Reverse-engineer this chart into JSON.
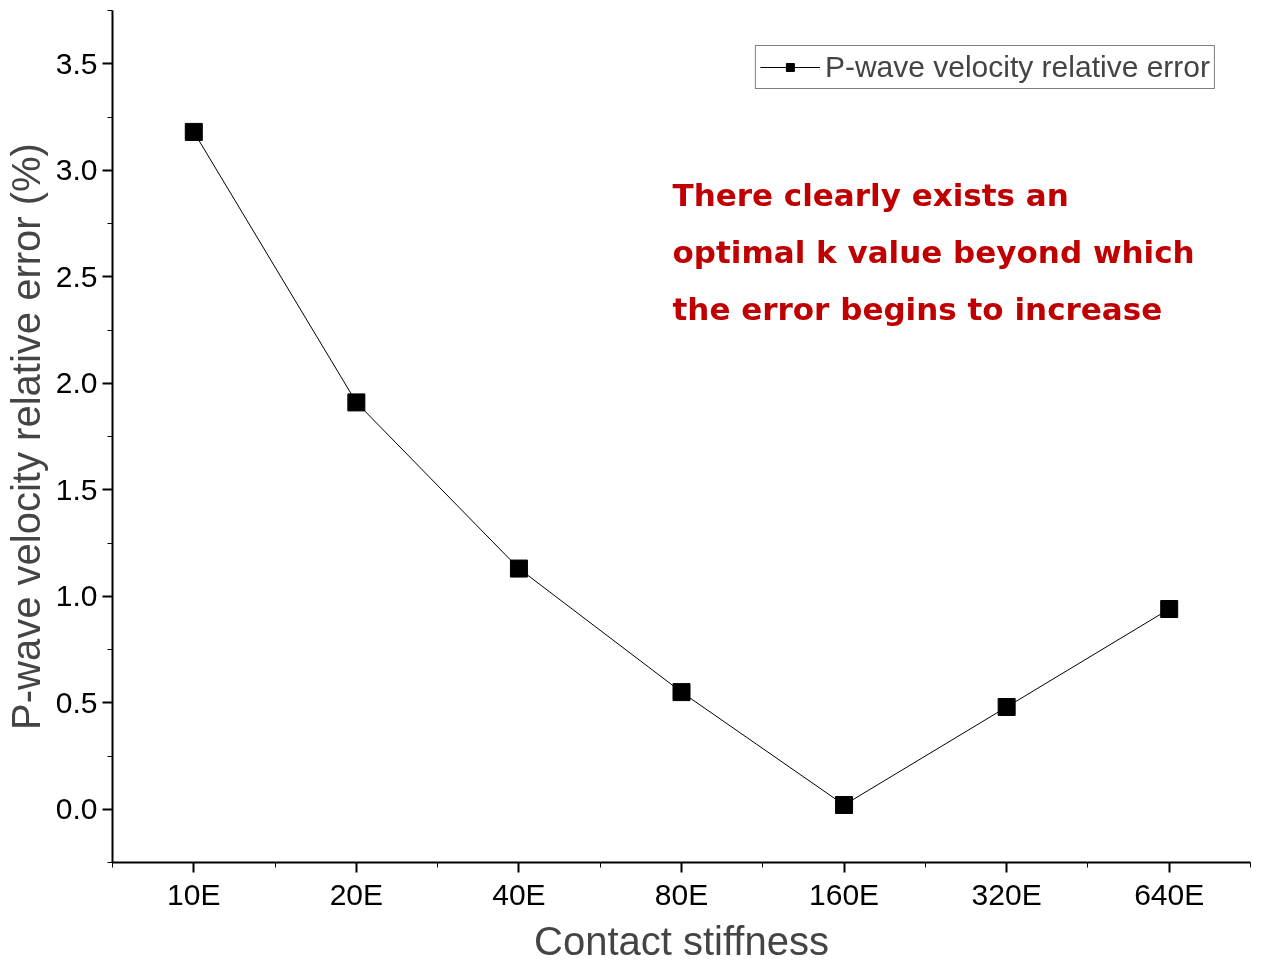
{
  "chart_data": {
    "type": "line",
    "xlabel": "Contact stiffness",
    "ylabel": "P-wave velocity relative error (%)",
    "categories": [
      "10E",
      "20E",
      "40E",
      "80E",
      "160E",
      "320E",
      "640E"
    ],
    "series": [
      {
        "name": "P-wave velocity relative error",
        "color": "#000000",
        "values": [
          3.18,
          1.91,
          1.13,
          0.55,
          0.02,
          0.48,
          0.94
        ]
      }
    ],
    "ylim": [
      -0.25,
      3.75
    ],
    "yticks": [
      {
        "value": 0,
        "label": "0.0"
      },
      0.5,
      {
        "value": 1,
        "label": "1.0"
      },
      1.5,
      {
        "value": 2,
        "label": "2.0"
      },
      2.5,
      {
        "value": 3,
        "label": "3.0"
      },
      3.5
    ],
    "marker": "square",
    "line_style": "solid",
    "grid": false,
    "legend": "top right",
    "annotations": [
      "There clearly exists an optimal k value beyond which the error begins to increase"
    ]
  }
}
